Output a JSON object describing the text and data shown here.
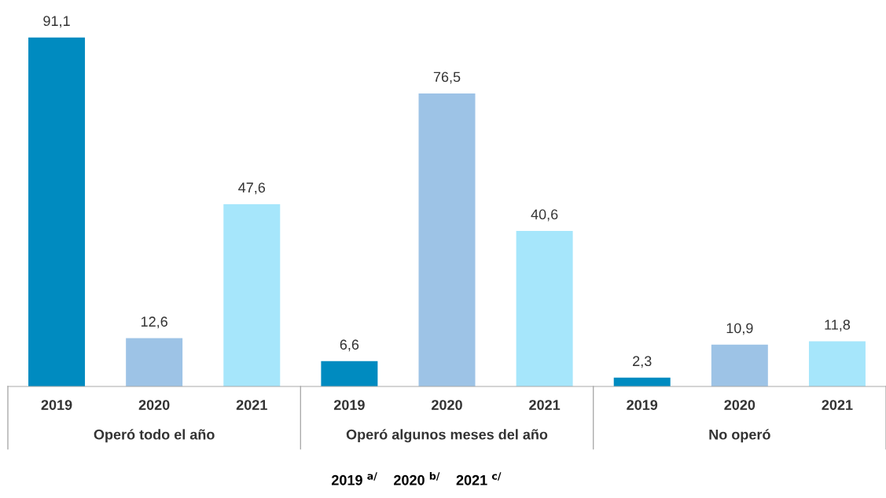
{
  "chart_data": {
    "type": "bar",
    "categories": [
      "Operó todo el año",
      "Operó algunos meses del año",
      "No operó"
    ],
    "series": [
      {
        "name": "2019",
        "color": "#008bc0",
        "values": [
          91.1,
          6.6,
          2.3
        ],
        "value_labels": [
          "91,1",
          "6,6",
          "2,3"
        ]
      },
      {
        "name": "2020",
        "color": "#9dc3e6",
        "values": [
          12.6,
          76.5,
          10.9
        ],
        "value_labels": [
          "12,6",
          "76,5",
          "10,9"
        ]
      },
      {
        "name": "2021",
        "color": "#a6e6fb",
        "values": [
          47.6,
          40.6,
          11.8
        ],
        "value_labels": [
          "47,6",
          "40,6",
          "11,8"
        ]
      }
    ],
    "grid": false,
    "legend": false,
    "annotations": [
      "2019 $^{a/}$    2020 $^{b/}$    2021 $^{c/}$"
    ]
  }
}
